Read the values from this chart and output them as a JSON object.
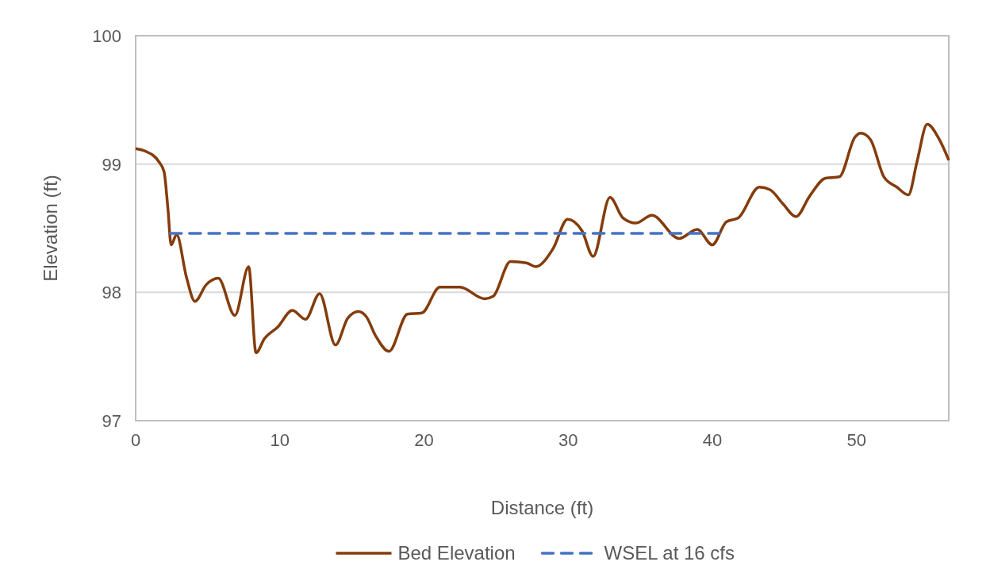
{
  "chart_data": {
    "type": "line",
    "xlabel": "Distance (ft)",
    "ylabel": "Elevation (ft)",
    "xlim": [
      0,
      56.4
    ],
    "xticks": [
      0,
      10,
      20,
      30,
      40,
      50
    ],
    "ylim": [
      97,
      100
    ],
    "yticks": [
      97,
      98,
      99,
      100
    ],
    "grid": "y",
    "legend": "bottom",
    "marker": "none",
    "series": [
      {
        "name": "Bed Elevation",
        "color": "#843c0c",
        "line_style": "solid",
        "x": [
          0,
          0.68,
          1.6,
          1.97,
          2.24,
          2.46,
          2.84,
          3.52,
          4.11,
          4.9,
          5.73,
          6.88,
          7.84,
          8.35,
          8.94,
          9.86,
          10.87,
          11.78,
          12.76,
          13.86,
          14.72,
          15.45,
          16.0,
          16.65,
          17.57,
          18.85,
          19.86,
          21.1,
          22.5,
          24.2,
          24.8,
          26.0,
          27.1,
          27.75,
          28.95,
          29.96,
          30.96,
          31.73,
          32.9,
          33.8,
          34.7,
          35.8,
          37.7,
          38.95,
          40.0,
          40.97,
          41.8,
          43.26,
          44.0,
          44.9,
          45.8,
          46.75,
          47.85,
          48.8,
          49.9,
          50.3,
          50.97,
          51.9,
          52.8,
          53.6,
          54.2,
          54.9,
          55.75,
          56.4
        ],
        "values": [
          99.12,
          99.1,
          99.02,
          98.94,
          98.65,
          98.37,
          98.45,
          98.12,
          97.93,
          98.06,
          98.11,
          97.82,
          98.2,
          97.53,
          97.64,
          97.73,
          97.86,
          97.79,
          97.99,
          97.59,
          97.8,
          97.85,
          97.81,
          97.66,
          97.54,
          97.83,
          97.84,
          98.04,
          98.04,
          97.95,
          97.97,
          98.24,
          98.23,
          98.2,
          98.34,
          98.57,
          98.48,
          98.28,
          98.74,
          98.58,
          98.54,
          98.6,
          98.42,
          98.49,
          98.37,
          98.55,
          98.58,
          98.82,
          98.8,
          98.69,
          98.59,
          98.75,
          98.89,
          98.9,
          99.21,
          99.24,
          99.19,
          98.9,
          98.82,
          98.76,
          99.02,
          99.31,
          99.19,
          99.03
        ]
      },
      {
        "name": "WSEL at 16 cfs",
        "color": "#4472c4",
        "line_style": "dashed",
        "x": [
          2.4,
          40.5
        ],
        "values": [
          98.46,
          98.46
        ]
      }
    ]
  }
}
